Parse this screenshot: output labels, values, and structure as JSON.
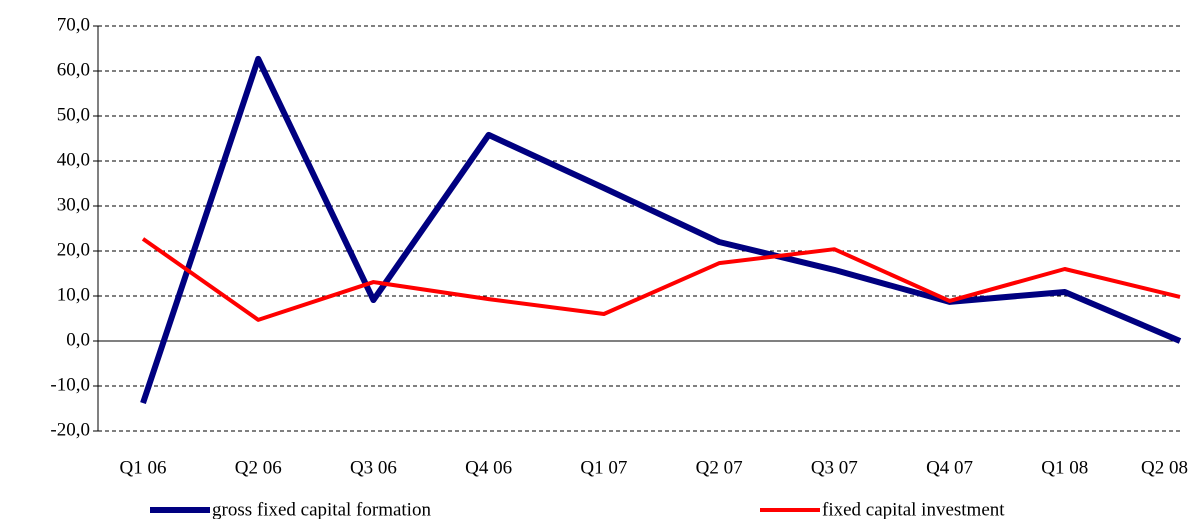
{
  "chart_data": {
    "type": "line",
    "categories": [
      "Q1 06",
      "Q2 06",
      "Q3 06",
      "Q4 06",
      "Q1 07",
      "Q2 07",
      "Q3 07",
      "Q4 07",
      "Q1 08",
      "Q2 08"
    ],
    "series": [
      {
        "name": "gross fixed capital formation",
        "color": "#000080",
        "values": [
          -13.8,
          62.7,
          9.1,
          45.8,
          34,
          22,
          15.8,
          8.7,
          10.9,
          0
        ]
      },
      {
        "name": "fixed capital investment",
        "color": "#ff0000",
        "values": [
          22.7,
          4.7,
          13.1,
          9.3,
          6,
          17.3,
          20.4,
          8.9,
          16,
          9.8
        ]
      }
    ],
    "ylim": [
      -20,
      70
    ],
    "yticks": [
      {
        "value": -20,
        "label": "-20,0"
      },
      {
        "value": -10,
        "label": "-10,0"
      },
      {
        "value": 0,
        "label": "0,0"
      },
      {
        "value": 10,
        "label": "10,0"
      },
      {
        "value": 20,
        "label": "20,0"
      },
      {
        "value": 30,
        "label": "30,0"
      },
      {
        "value": 40,
        "label": "40,0"
      },
      {
        "value": 50,
        "label": "50,0"
      },
      {
        "value": 60,
        "label": "60,0"
      },
      {
        "value": 70,
        "label": "70,0"
      }
    ],
    "grid": true,
    "legend": "bottom"
  }
}
